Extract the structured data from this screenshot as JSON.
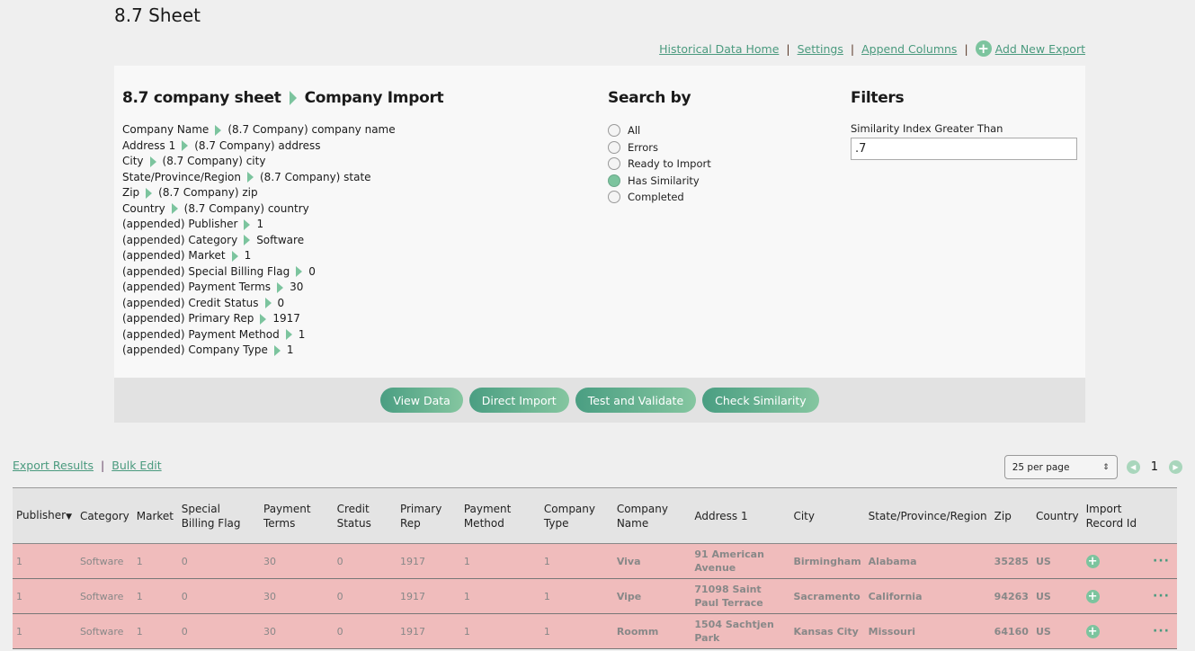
{
  "page": {
    "title": "8.7 Sheet"
  },
  "top_links": {
    "historical": "Historical Data Home",
    "settings": "Settings",
    "append_columns": "Append Columns",
    "add_new_export": "Add New Export",
    "separator": "|"
  },
  "mapping": {
    "source": "8.7 company sheet",
    "target": "Company Import",
    "rows": [
      {
        "field": "Company Name",
        "value": "(8.7 Company) company name"
      },
      {
        "field": "Address 1",
        "value": "(8.7 Company) address"
      },
      {
        "field": "City",
        "value": "(8.7 Company) city"
      },
      {
        "field": "State/Province/Region",
        "value": "(8.7 Company) state"
      },
      {
        "field": "Zip",
        "value": "(8.7 Company) zip"
      },
      {
        "field": "Country",
        "value": "(8.7 Company) country"
      },
      {
        "field": "(appended) Publisher",
        "value": "1"
      },
      {
        "field": "(appended) Category",
        "value": "Software"
      },
      {
        "field": "(appended) Market",
        "value": "1"
      },
      {
        "field": "(appended) Special Billing Flag",
        "value": "0"
      },
      {
        "field": "(appended) Payment Terms",
        "value": "30"
      },
      {
        "field": "(appended) Credit Status",
        "value": "0"
      },
      {
        "field": "(appended) Primary Rep",
        "value": "1917"
      },
      {
        "field": "(appended) Payment Method",
        "value": "1"
      },
      {
        "field": "(appended) Company Type",
        "value": "1"
      }
    ]
  },
  "search_by": {
    "title": "Search by",
    "options": [
      {
        "label": "All",
        "checked": false
      },
      {
        "label": "Errors",
        "checked": false
      },
      {
        "label": "Ready to Import",
        "checked": false
      },
      {
        "label": "Has Similarity",
        "checked": true
      },
      {
        "label": "Completed",
        "checked": false
      }
    ]
  },
  "filters": {
    "title": "Filters",
    "similarity_label": "Similarity Index Greater Than",
    "similarity_value": ".7"
  },
  "actions": {
    "view_data": "View Data",
    "direct_import": "Direct Import",
    "test_validate": "Test and Validate",
    "check_similarity": "Check Similarity"
  },
  "results": {
    "export_results": "Export Results",
    "bulk_edit": "Bulk Edit",
    "separator": "|",
    "per_page": "25 per page",
    "current_page": "1",
    "colors": {
      "row_error": "#f0bcbc",
      "accent": "#7cc49e",
      "link": "#4a9a7e"
    },
    "columns": [
      "Publisher",
      "Category",
      "Market",
      "Special Billing Flag",
      "Payment Terms",
      "Credit Status",
      "Primary Rep",
      "Payment Method",
      "Company Type",
      "Company Name",
      "Address 1",
      "City",
      "State/Province/Region",
      "Zip",
      "Country",
      "Import Record Id"
    ],
    "rows": [
      {
        "publisher": "1",
        "category": "Software",
        "market": "1",
        "billing": "0",
        "terms": "30",
        "credit": "0",
        "rep": "1917",
        "method": "1",
        "type": "1",
        "name": "Viva",
        "address": "91 American Avenue",
        "city": "Birmingham",
        "state": "Alabama",
        "zip": "35285",
        "country": "US"
      },
      {
        "publisher": "1",
        "category": "Software",
        "market": "1",
        "billing": "0",
        "terms": "30",
        "credit": "0",
        "rep": "1917",
        "method": "1",
        "type": "1",
        "name": "Vipe",
        "address": "71098 Saint Paul Terrace",
        "city": "Sacramento",
        "state": "California",
        "zip": "94263",
        "country": "US"
      },
      {
        "publisher": "1",
        "category": "Software",
        "market": "1",
        "billing": "0",
        "terms": "30",
        "credit": "0",
        "rep": "1917",
        "method": "1",
        "type": "1",
        "name": "Roomm",
        "address": "1504 Sachtjen Park",
        "city": "Kansas City",
        "state": "Missouri",
        "zip": "64160",
        "country": "US"
      }
    ]
  }
}
